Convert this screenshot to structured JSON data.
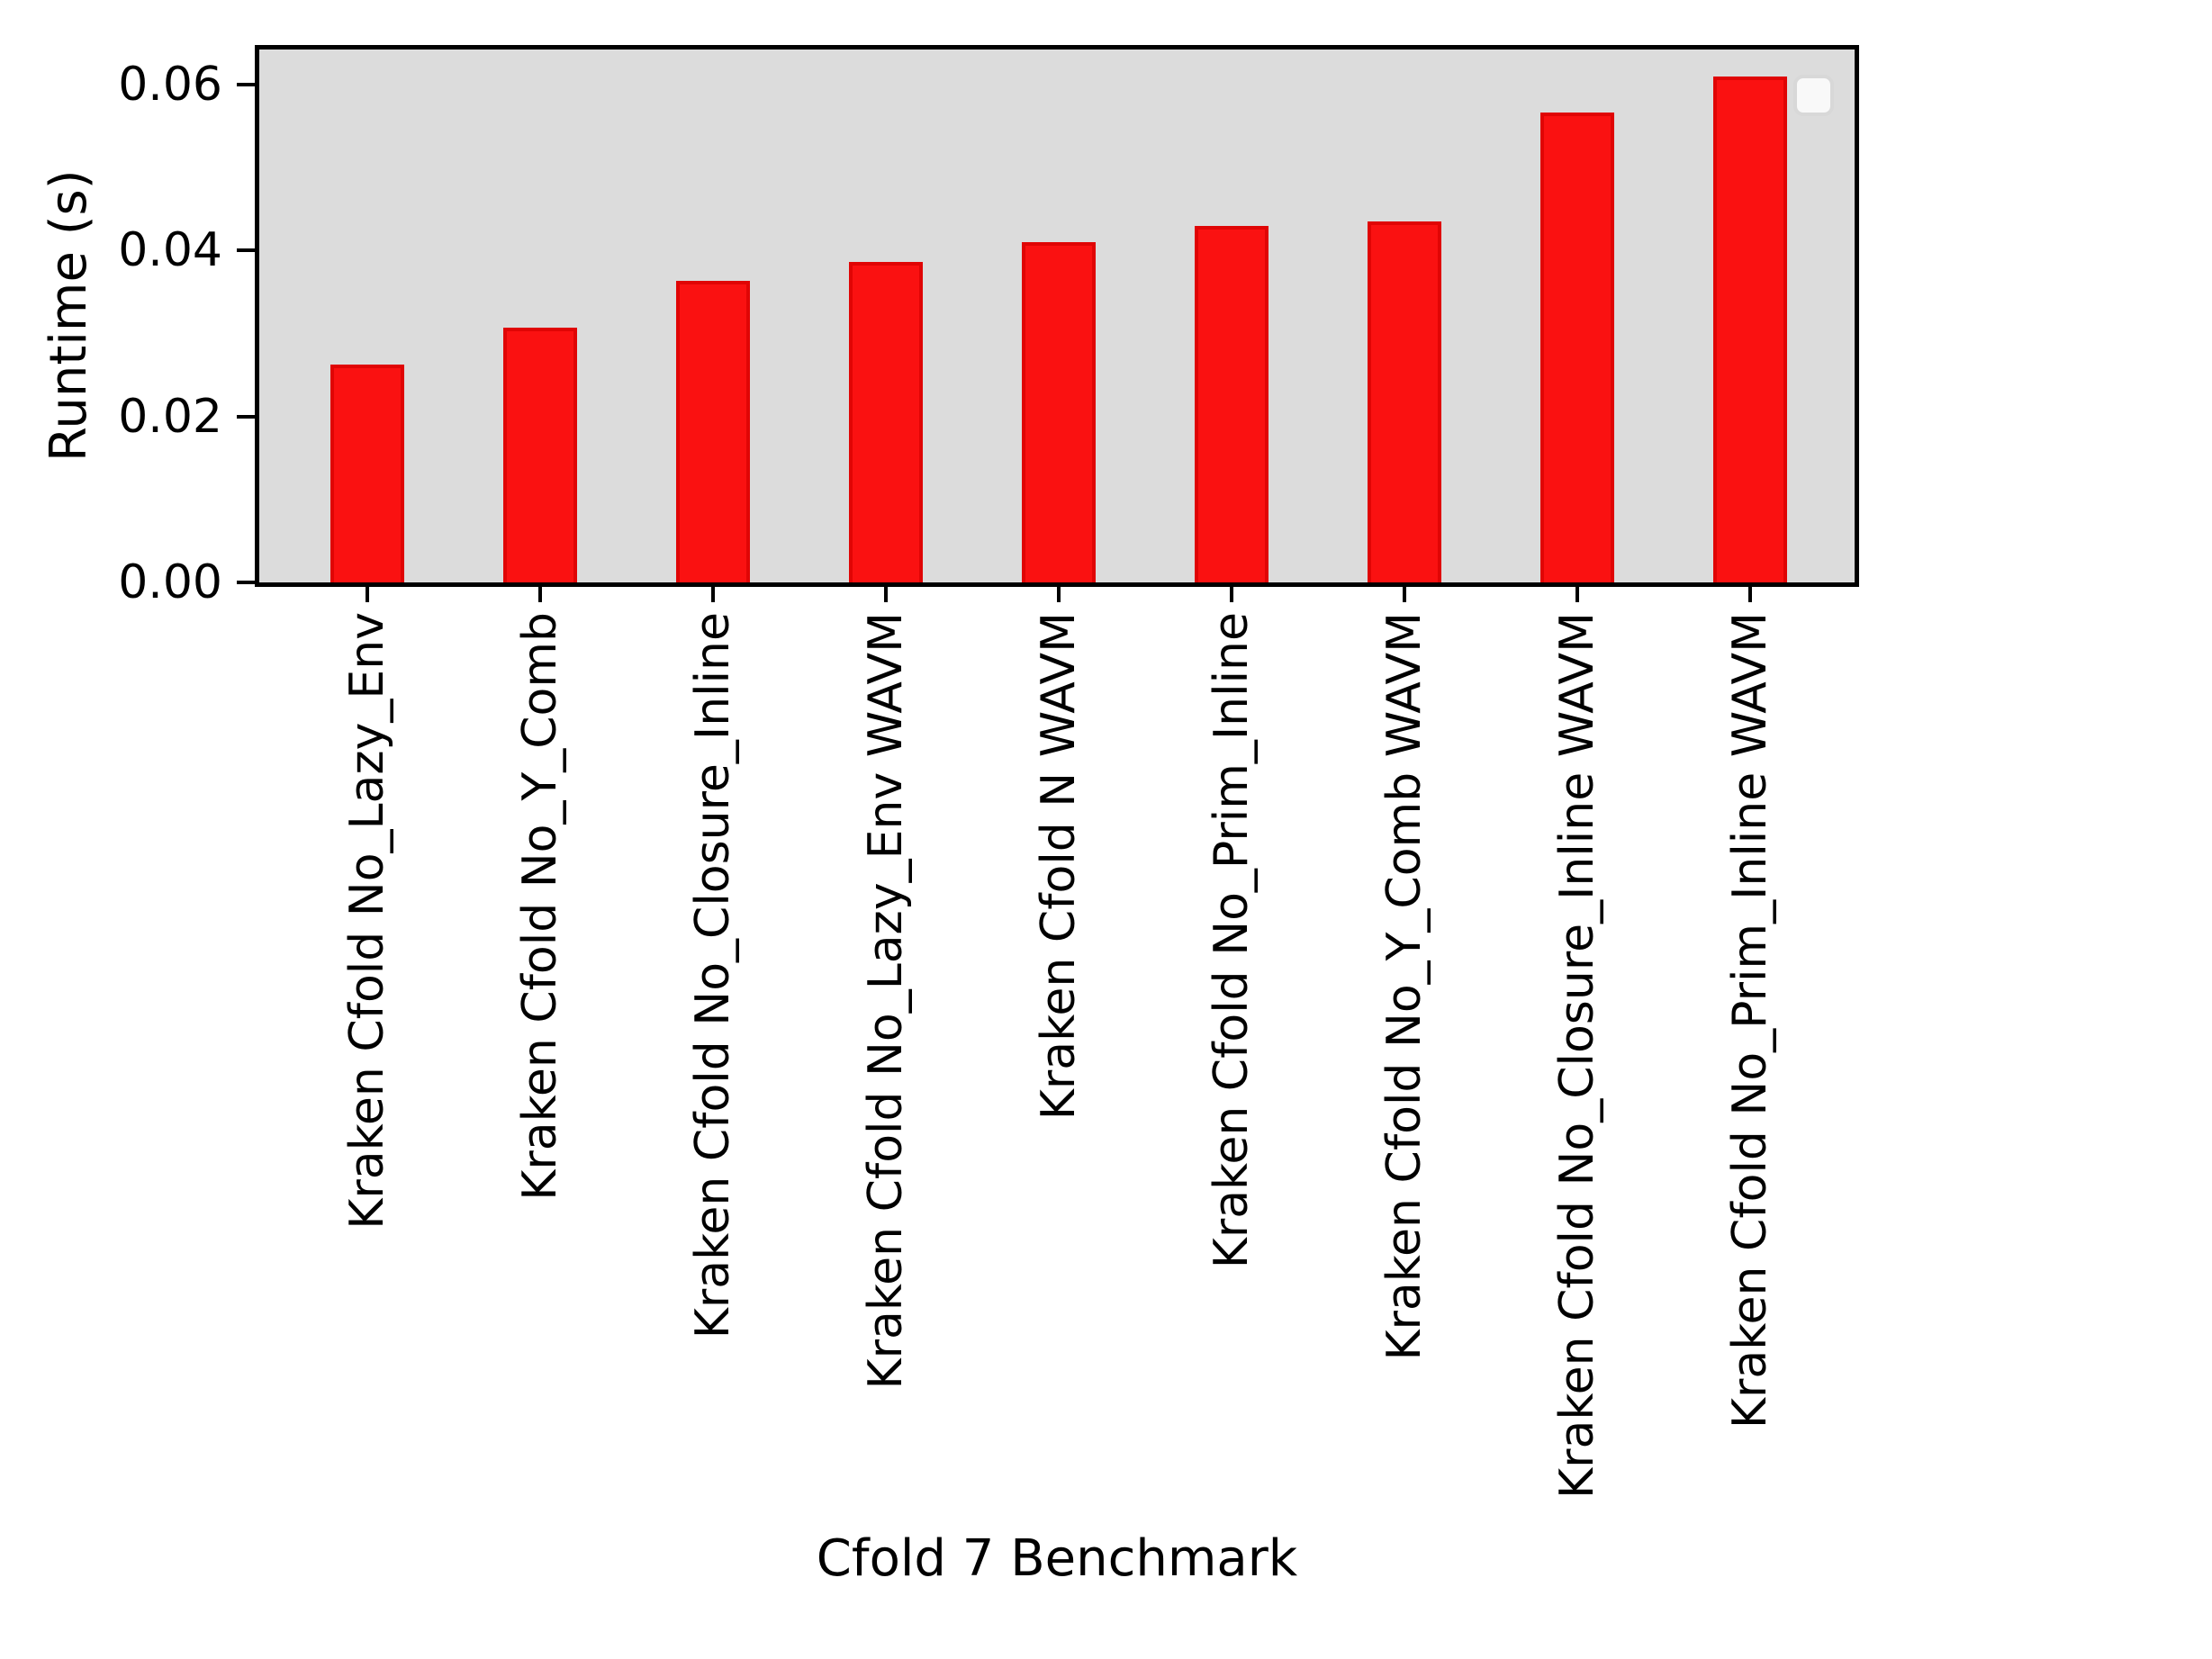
{
  "chart_data": {
    "type": "bar",
    "title": "",
    "xlabel": "Cfold 7 Benchmark",
    "ylabel": "Runtime (s)",
    "categories": [
      "Kraken Cfold No_Lazy_Env",
      "Kraken Cfold No_Y_Comb",
      "Kraken Cfold No_Closure_Inline",
      "Kraken Cfold No_Lazy_Env WAVM",
      "Kraken Cfold N WAVM",
      "Kraken Cfold No_Prim_Inline",
      "Kraken Cfold No_Y_Comb WAVM",
      "Kraken Cfold No_Closure_Inline WAVM",
      "Kraken Cfold No_Prim_Inline WAVM"
    ],
    "values": [
      0.0262,
      0.0307,
      0.0363,
      0.0386,
      0.041,
      0.0429,
      0.0435,
      0.0566,
      0.061
    ],
    "yticks": [
      0.0,
      0.02,
      0.04,
      0.06
    ],
    "ytick_labels": [
      "0.00",
      "0.02",
      "0.04",
      "0.06"
    ],
    "ylim": [
      0,
      0.0642
    ],
    "grid": false,
    "legend": {
      "present": true,
      "entries": [],
      "position": "upper right"
    },
    "colors": {
      "bar_fill": "#fa1111",
      "bar_edge": "#e00505",
      "plot_background": "#dcdcdc",
      "spine": "#000000",
      "text": "#000000",
      "figure_background": "#ffffff"
    }
  }
}
